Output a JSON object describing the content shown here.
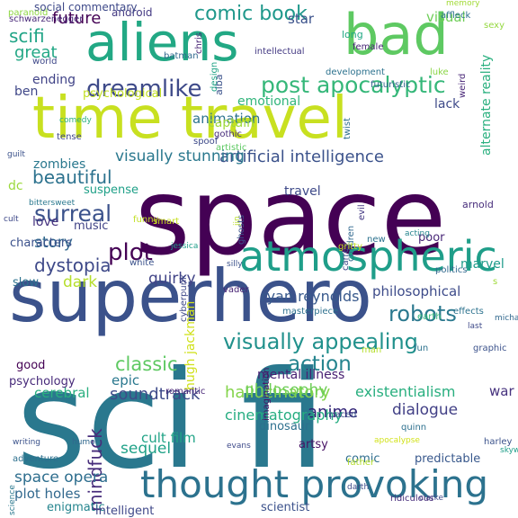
{
  "background": "#ffffff",
  "words": [
    {
      "text": "space",
      "color": "#440154"
    },
    {
      "text": "sci fi",
      "color": "#2a788e"
    },
    {
      "text": "superhero",
      "color": "#3b528b"
    },
    {
      "text": "time travel",
      "color": "#c8e020"
    },
    {
      "text": "aliens",
      "color": "#22a884"
    },
    {
      "text": "bad",
      "color": "#5ec962"
    },
    {
      "text": "atmospheric",
      "color": "#1f9e89"
    },
    {
      "text": "thought provoking",
      "color": "#2c728e"
    },
    {
      "text": "post apocalyptic",
      "color": "#35b779"
    },
    {
      "text": "visually appealing",
      "color": "#21918c"
    },
    {
      "text": "dreamlike",
      "color": "#3e4a89"
    },
    {
      "text": "comic book",
      "color": "#1f988b"
    },
    {
      "text": "surreal",
      "color": "#3b528b"
    },
    {
      "text": "plot",
      "color": "#440154"
    },
    {
      "text": "robots",
      "color": "#2a788e"
    },
    {
      "text": "dystopia",
      "color": "#3e4989"
    },
    {
      "text": "action",
      "color": "#25848e"
    },
    {
      "text": "classic",
      "color": "#5ec962"
    },
    {
      "text": "soundtrack",
      "color": "#3e4a89"
    },
    {
      "text": "hallucinatory",
      "color": "#84d44b"
    },
    {
      "text": "philosophy",
      "color": "#6ece58"
    },
    {
      "text": "mindfuck",
      "color": "#472d7b"
    },
    {
      "text": "anime",
      "color": "#2d1e73"
    },
    {
      "text": "space opera",
      "color": "#2e6e8e"
    },
    {
      "text": "sequel",
      "color": "#1fa187"
    },
    {
      "text": "beautiful",
      "color": "#2c728e"
    },
    {
      "text": "future",
      "color": "#440154"
    },
    {
      "text": "scifi",
      "color": "#20a486"
    },
    {
      "text": "great",
      "color": "#22a785"
    },
    {
      "text": "story",
      "color": "#31688e"
    },
    {
      "text": "dark",
      "color": "#b5de2b"
    },
    {
      "text": "quirky",
      "color": "#414487"
    },
    {
      "text": "ryan reynolds",
      "color": "#38598c"
    },
    {
      "text": "artificial intelligence",
      "color": "#3b528b"
    },
    {
      "text": "visually stunning",
      "color": "#2a788e"
    },
    {
      "text": "cinematography",
      "color": "#26ad81"
    },
    {
      "text": "dialogue",
      "color": "#424086"
    },
    {
      "text": "existentialism",
      "color": "#29af7f"
    },
    {
      "text": "philosophical",
      "color": "#3e4c8a"
    },
    {
      "text": "cerebral",
      "color": "#29af7f"
    },
    {
      "text": "war",
      "color": "#46327e"
    },
    {
      "text": "marvel",
      "color": "#1e9b8a"
    },
    {
      "text": "cult film",
      "color": "#20a386"
    },
    {
      "text": "epic",
      "color": "#2a788e"
    },
    {
      "text": "plot holes",
      "color": "#31688e"
    },
    {
      "text": "mental illness",
      "color": "#482173"
    },
    {
      "text": "animation",
      "color": "#2c738e"
    },
    {
      "text": "star",
      "color": "#3b528b"
    },
    {
      "text": "visual",
      "color": "#6ece58"
    },
    {
      "text": "captain",
      "color": "#9fda3a"
    },
    {
      "text": "emotional",
      "color": "#31b57b"
    },
    {
      "text": "ending",
      "color": "#404387"
    },
    {
      "text": "ben",
      "color": "#3f4788"
    },
    {
      "text": "lack",
      "color": "#3e4a89"
    },
    {
      "text": "zombies",
      "color": "#2a788e"
    },
    {
      "text": "love",
      "color": "#46337f"
    },
    {
      "text": "dc",
      "color": "#9bd93c"
    },
    {
      "text": "suspense",
      "color": "#1fa088"
    },
    {
      "text": "music",
      "color": "#414487"
    },
    {
      "text": "characters",
      "color": "#3b518b"
    },
    {
      "text": "poor",
      "color": "#482677"
    },
    {
      "text": "travel",
      "color": "#3e4a89"
    },
    {
      "text": "hugh jackman",
      "color": "#d0e11c"
    },
    {
      "text": "slow",
      "color": "#2c728e"
    },
    {
      "text": "good",
      "color": "#440154"
    },
    {
      "text": "psychology",
      "color": "#472a7a"
    },
    {
      "text": "dinosaur",
      "color": "#2d708e"
    },
    {
      "text": "artsy",
      "color": "#471365"
    },
    {
      "text": "enigmatic",
      "color": "#25858e"
    },
    {
      "text": "intelligent",
      "color": "#3f4889"
    },
    {
      "text": "comic",
      "color": "#2e6d8e"
    },
    {
      "text": "predictable",
      "color": "#38588c"
    },
    {
      "text": "scientist",
      "color": "#3b518b"
    },
    {
      "text": "psychological",
      "color": "#c2df23"
    },
    {
      "text": "android",
      "color": "#443983"
    },
    {
      "text": "alternate reality",
      "color": "#2ab07f"
    },
    {
      "text": "social commentary",
      "color": "#3e4989"
    },
    {
      "text": "paranoid",
      "color": "#8fd744"
    },
    {
      "text": "schwarzenegger",
      "color": "#482878"
    },
    {
      "text": "world",
      "color": "#3f4889"
    },
    {
      "text": "memory",
      "color": "#a2da37"
    },
    {
      "text": "affleck",
      "color": "#2d718e"
    },
    {
      "text": "sexy",
      "color": "#95d840"
    },
    {
      "text": "chris",
      "color": "#482475"
    },
    {
      "text": "intellectual",
      "color": "#443a83"
    },
    {
      "text": "long",
      "color": "#22a884"
    },
    {
      "text": "female",
      "color": "#482576"
    },
    {
      "text": "batman",
      "color": "#31688e"
    },
    {
      "text": "alba",
      "color": "#3b528b"
    },
    {
      "text": "design",
      "color": "#20a386"
    },
    {
      "text": "development",
      "color": "#2c728e"
    },
    {
      "text": "luke",
      "color": "#8bd646"
    },
    {
      "text": "weird",
      "color": "#482677"
    },
    {
      "text": "futuristic",
      "color": "#33638d"
    },
    {
      "text": "twist",
      "color": "#2e6e8e"
    },
    {
      "text": "gothic",
      "color": "#472c7a"
    },
    {
      "text": "spoof",
      "color": "#3e4a89"
    },
    {
      "text": "artistic",
      "color": "#5ec962"
    },
    {
      "text": "comedy",
      "color": "#29af7f"
    },
    {
      "text": "tense",
      "color": "#3f4788"
    },
    {
      "text": "guilt",
      "color": "#3b528b"
    },
    {
      "text": "bittersweet",
      "color": "#2a788e"
    },
    {
      "text": "cult",
      "color": "#3e4989"
    },
    {
      "text": "funny",
      "color": "#c2df23"
    },
    {
      "text": "smart",
      "color": "#c8e020"
    },
    {
      "text": "ghosts",
      "color": "#3b528b"
    },
    {
      "text": "jin",
      "color": "#b8de29"
    },
    {
      "text": "jessica",
      "color": "#1f9e89"
    },
    {
      "text": "silly",
      "color": "#3b528b"
    },
    {
      "text": "acting",
      "color": "#25858e"
    },
    {
      "text": "new",
      "color": "#2c728e"
    },
    {
      "text": "carrey",
      "color": "#3e4a89"
    },
    {
      "text": "children",
      "color": "#31688e"
    },
    {
      "text": "evil",
      "color": "#443983"
    },
    {
      "text": "arnold",
      "color": "#472d7b"
    },
    {
      "text": "gritty",
      "color": "#c2df23"
    },
    {
      "text": "white",
      "color": "#3b528b"
    },
    {
      "text": "vader",
      "color": "#482475"
    },
    {
      "text": "cyberpunk",
      "color": "#3e4989"
    },
    {
      "text": "politics",
      "color": "#31688e"
    },
    {
      "text": "masterpiece",
      "color": "#2d708e"
    },
    {
      "text": "s",
      "color": "#9fda3a"
    },
    {
      "text": "effects",
      "color": "#2c728e"
    },
    {
      "text": "earth",
      "color": "#35b779"
    },
    {
      "text": "last",
      "color": "#3e4a89"
    },
    {
      "text": "michael",
      "color": "#31688e"
    },
    {
      "text": "imagination",
      "color": "#471063"
    },
    {
      "text": "man",
      "color": "#b5de2b"
    },
    {
      "text": "fun",
      "color": "#2c728e"
    },
    {
      "text": "graphic",
      "color": "#3b528b"
    },
    {
      "text": "romantic",
      "color": "#482677"
    },
    {
      "text": "paced",
      "color": "#3b528b"
    },
    {
      "text": "apocalypse",
      "color": "#d2e21b"
    },
    {
      "text": "writing",
      "color": "#3b528b"
    },
    {
      "text": "humor",
      "color": "#31688e"
    },
    {
      "text": "evans",
      "color": "#3e4a89"
    },
    {
      "text": "quinn",
      "color": "#2d708e"
    },
    {
      "text": "harley",
      "color": "#3b528b"
    },
    {
      "text": "skywalker",
      "color": "#1f9e89"
    },
    {
      "text": "adventure",
      "color": "#2d708e"
    },
    {
      "text": "father",
      "color": "#b5de2b"
    },
    {
      "text": "darth",
      "color": "#3e4a89"
    },
    {
      "text": "science",
      "color": "#2a788e"
    },
    {
      "text": "clarke",
      "color": "#3e4a89"
    },
    {
      "text": "ridiculous",
      "color": "#472d7b"
    }
  ]
}
